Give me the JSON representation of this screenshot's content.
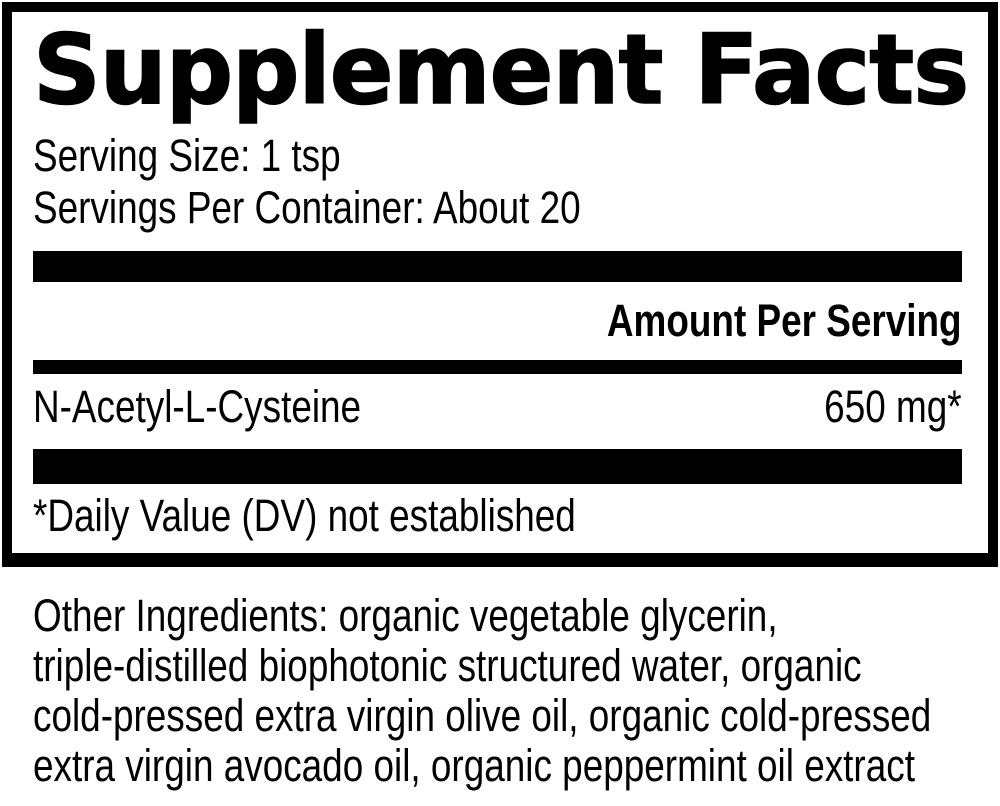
{
  "label": {
    "title": "Supplement Facts",
    "serving_size": "Serving Size: 1 tsp",
    "servings_per_container": "Servings Per Container: About 20",
    "amount_per_serving_header": "Amount Per Serving",
    "rows": [
      {
        "name": "N-Acetyl-L-Cysteine",
        "amount": "650 mg*"
      }
    ],
    "footnote": "*Daily Value (DV) not established"
  },
  "other_ingredients": {
    "full_text": "Other Ingredients: organic vegetable glycerin, triple-distilled biophotonic structured water, organic cold-pressed extra virgin olive oil, organic cold-pressed extra virgin avocado oil, organic peppermint oil extract",
    "lines": [
      "Other Ingredients: organic vegetable glycerin,",
      "triple-distilled biophotonic structured water, organic",
      "cold-pressed extra virgin olive oil, organic cold-pressed",
      "extra virgin avocado oil, organic peppermint oil extract"
    ]
  },
  "colors": {
    "ink": "#000000",
    "background": "#ffffff"
  }
}
